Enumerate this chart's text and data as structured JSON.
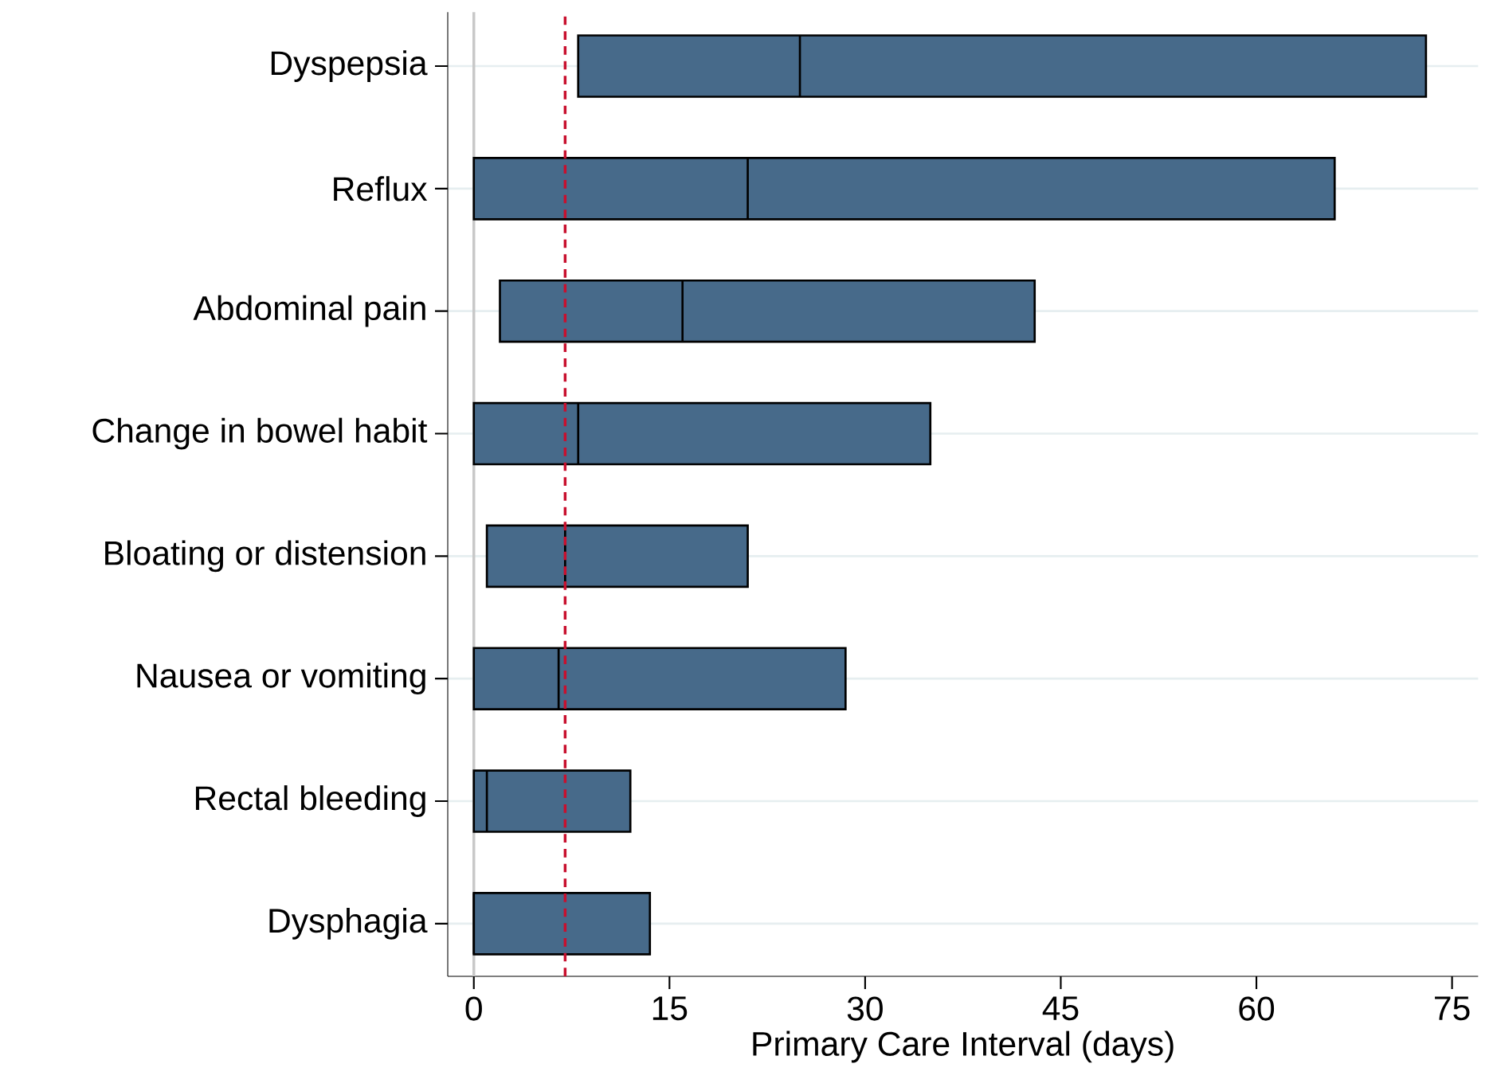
{
  "chart_data": {
    "type": "box",
    "orientation": "horizontal",
    "color": "#476a8a",
    "grid": "y",
    "categories": [
      "Dyspepsia",
      "Reflux",
      "Abdominal pain",
      "Change in bowel habit",
      "Bloating or distension",
      "Nausea or vomiting",
      "Rectal bleeding",
      "Dysphagia"
    ],
    "boxes": [
      {
        "low": 8,
        "q1": 8,
        "median": 25,
        "q3": 73,
        "high": 73
      },
      {
        "low": 0,
        "q1": 0,
        "median": 21,
        "q3": 66,
        "high": 66
      },
      {
        "low": 2,
        "q1": 2,
        "median": 16,
        "q3": 43,
        "high": 43
      },
      {
        "low": 0,
        "q1": 0,
        "median": 8,
        "q3": 35,
        "high": 35
      },
      {
        "low": 1,
        "q1": 1,
        "median": 7,
        "q3": 21,
        "high": 21
      },
      {
        "low": 0,
        "q1": 0,
        "median": 6.5,
        "q3": 28.5,
        "high": 28.5
      },
      {
        "low": 0,
        "q1": 0,
        "median": 1,
        "q3": 12,
        "high": 12
      },
      {
        "low": 0,
        "q1": 0,
        "median": 0,
        "q3": 13.5,
        "high": 13.5
      }
    ],
    "xlabel": "Primary Care Interval (days)",
    "xlim": [
      -2,
      77
    ],
    "xticks": [
      0,
      15,
      30,
      45,
      60,
      75
    ],
    "ref_lines": [
      {
        "axis": "x",
        "value": 0,
        "color": "#c8c8c8",
        "line_style": "solid"
      },
      {
        "axis": "x",
        "value": 7,
        "color": "#c8102e",
        "line_style": "dashed"
      }
    ]
  }
}
